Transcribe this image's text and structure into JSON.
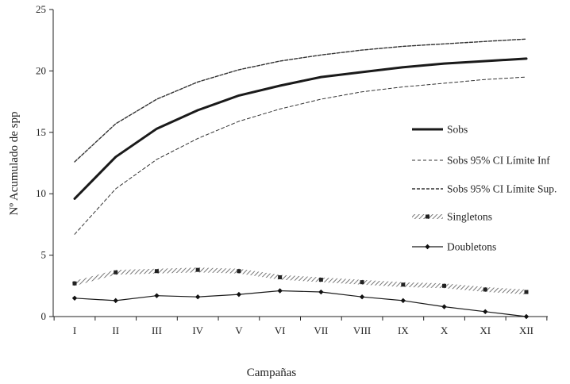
{
  "chart_data": {
    "type": "line",
    "title": "",
    "xlabel": "Campañas",
    "ylabel": "Nº Acumulado de spp",
    "ylim": [
      0,
      25
    ],
    "yticks": [
      0,
      5,
      10,
      15,
      20,
      25
    ],
    "grid": false,
    "legend_position": "right",
    "categories": [
      "I",
      "II",
      "III",
      "IV",
      "V",
      "VI",
      "VII",
      "VIII",
      "IX",
      "X",
      "XI",
      "XII"
    ],
    "series": [
      {
        "name": "Sobs",
        "style": "thick-solid",
        "color": "#1a1a1a",
        "values": [
          9.6,
          13.0,
          15.3,
          16.8,
          18.0,
          18.8,
          19.5,
          19.9,
          20.3,
          20.6,
          20.8,
          21.0
        ]
      },
      {
        "name": "Sobs 95% CI Límite Inf",
        "style": "thin-dashed",
        "color": "#333333",
        "values": [
          6.7,
          10.4,
          12.8,
          14.5,
          15.9,
          16.9,
          17.7,
          18.3,
          18.7,
          19.0,
          19.3,
          19.5
        ]
      },
      {
        "name": "Sobs 95% CI Límite Sup.",
        "style": "dashed",
        "color": "#333333",
        "values": [
          12.6,
          15.7,
          17.7,
          19.1,
          20.1,
          20.8,
          21.3,
          21.7,
          22.0,
          22.2,
          22.4,
          22.6
        ]
      },
      {
        "name": "Singletons",
        "style": "hatched-square-markers",
        "color": "#888888",
        "values": [
          2.7,
          3.6,
          3.7,
          3.8,
          3.7,
          3.2,
          3.0,
          2.8,
          2.6,
          2.5,
          2.2,
          2.0
        ]
      },
      {
        "name": "Doubletons",
        "style": "solid-diamond-markers",
        "color": "#1a1a1a",
        "values": [
          1.5,
          1.3,
          1.7,
          1.6,
          1.8,
          2.1,
          2.0,
          1.6,
          1.3,
          0.8,
          0.4,
          0.0
        ]
      }
    ]
  }
}
